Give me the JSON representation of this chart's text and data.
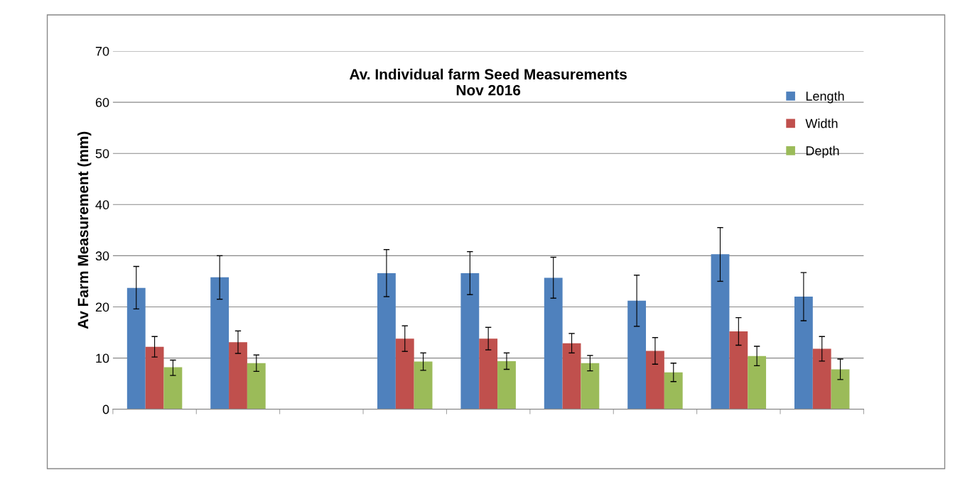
{
  "chart_data": {
    "type": "bar",
    "title": "Av. Individual farm Seed Measurements\nNov 2016",
    "ylabel": "Av Farm Measurement (mm)",
    "categories": [
      null,
      null,
      null,
      null,
      null,
      null,
      null,
      null,
      null
    ],
    "series": [
      {
        "name": "Length",
        "color": "#4f81bd",
        "values": [
          23.7,
          25.8,
          null,
          26.6,
          26.6,
          25.7,
          21.2,
          30.3,
          22.0
        ],
        "errors": [
          [
            19.6,
            27.9
          ],
          [
            21.5,
            30.0
          ],
          null,
          [
            22.0,
            31.2
          ],
          [
            22.4,
            30.8
          ],
          [
            21.7,
            29.7
          ],
          [
            16.2,
            26.2
          ],
          [
            25.0,
            35.5
          ],
          [
            17.3,
            26.7
          ]
        ]
      },
      {
        "name": "Width",
        "color": "#c0504d",
        "values": [
          12.2,
          13.1,
          null,
          13.8,
          13.8,
          12.9,
          11.4,
          15.2,
          11.8
        ],
        "errors": [
          [
            10.2,
            14.2
          ],
          [
            10.9,
            15.3
          ],
          null,
          [
            11.3,
            16.3
          ],
          [
            11.6,
            16.0
          ],
          [
            11.0,
            14.8
          ],
          [
            8.8,
            14.0
          ],
          [
            12.5,
            17.9
          ],
          [
            9.4,
            14.2
          ]
        ]
      },
      {
        "name": "Depth",
        "color": "#9bbb59",
        "values": [
          8.2,
          9.0,
          null,
          9.3,
          9.4,
          9.0,
          7.2,
          10.4,
          7.8
        ],
        "errors": [
          [
            6.6,
            9.6
          ],
          [
            7.4,
            10.6
          ],
          null,
          [
            7.6,
            11.0
          ],
          [
            7.8,
            11.0
          ],
          [
            7.5,
            10.5
          ],
          [
            5.4,
            9.0
          ],
          [
            8.5,
            12.3
          ],
          [
            5.8,
            9.8
          ]
        ]
      }
    ],
    "ylim": [
      0,
      70
    ],
    "yticks": [
      0,
      10,
      20,
      30,
      40,
      50,
      60,
      70
    ],
    "grid": "y",
    "legend": "top right"
  }
}
